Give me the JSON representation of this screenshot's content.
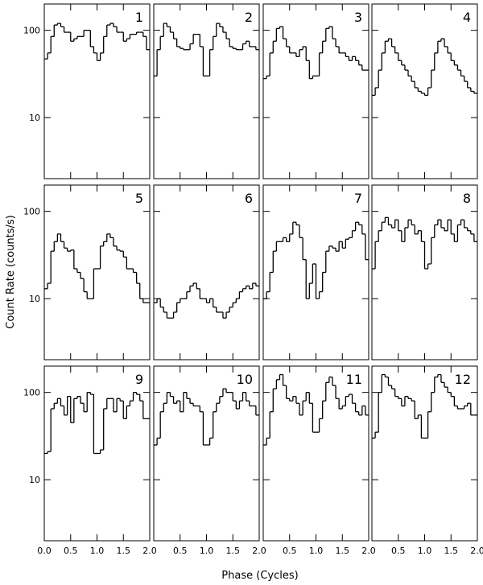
{
  "xlabel": "Phase (Cycles)",
  "ylabel": "Count Rate (counts/s)",
  "axes": {
    "xlim": [
      0,
      2
    ],
    "ylim": [
      2,
      200
    ],
    "log_y": true,
    "xticks": [
      {
        "value": 0,
        "label": "0.0"
      },
      0.5,
      {
        "value": 1,
        "label": "1.0"
      },
      1.5,
      {
        "value": 2,
        "label": "2.0"
      }
    ],
    "yticks": [
      10,
      100
    ],
    "bins": [
      0,
      0.0625,
      0.125,
      0.1875,
      0.25,
      0.3125,
      0.375,
      0.4375,
      0.5,
      0.5625,
      0.625,
      0.6875,
      0.75,
      0.8125,
      0.875,
      0.9375,
      1,
      1.0625,
      1.125,
      1.1875,
      1.25,
      1.3125,
      1.375,
      1.4375,
      1.5,
      1.5625,
      1.625,
      1.6875,
      1.75,
      1.8125,
      1.875,
      1.9375,
      2
    ],
    "color": "#000000"
  },
  "chart_data": [
    {
      "type": "step",
      "title": "1",
      "values": [
        47,
        55,
        85,
        115,
        120,
        110,
        95,
        95,
        75,
        80,
        85,
        85,
        100,
        100,
        65,
        55,
        45,
        55,
        85,
        115,
        120,
        110,
        95,
        95,
        75,
        80,
        90,
        90,
        95,
        95,
        85,
        60
      ]
    },
    {
      "type": "step",
      "title": "2",
      "values": [
        30,
        60,
        85,
        120,
        110,
        95,
        80,
        65,
        62,
        60,
        60,
        70,
        90,
        90,
        65,
        30,
        30,
        60,
        85,
        120,
        110,
        95,
        80,
        65,
        62,
        60,
        60,
        70,
        75,
        65,
        65,
        60
      ]
    },
    {
      "type": "step",
      "title": "3",
      "values": [
        28,
        30,
        55,
        75,
        105,
        110,
        80,
        65,
        55,
        55,
        50,
        60,
        65,
        45,
        28,
        30,
        30,
        55,
        75,
        105,
        110,
        80,
        65,
        55,
        55,
        50,
        45,
        50,
        45,
        40,
        35,
        35
      ]
    },
    {
      "type": "step",
      "title": "4",
      "values": [
        18,
        22,
        35,
        55,
        75,
        80,
        65,
        55,
        45,
        40,
        35,
        30,
        26,
        22,
        20,
        19,
        18,
        22,
        35,
        55,
        75,
        80,
        65,
        55,
        45,
        40,
        35,
        30,
        26,
        22,
        20,
        19
      ]
    },
    {
      "type": "step",
      "title": "5",
      "values": [
        13,
        15,
        35,
        45,
        55,
        45,
        38,
        35,
        36,
        22,
        20,
        17,
        12,
        10,
        10,
        22,
        22,
        40,
        45,
        55,
        50,
        40,
        36,
        35,
        30,
        22,
        22,
        20,
        15,
        10,
        9,
        9
      ]
    },
    {
      "type": "step",
      "title": "6",
      "values": [
        9,
        10,
        8,
        7,
        6,
        6,
        7,
        9,
        10,
        10,
        12,
        14,
        15,
        13,
        10,
        10,
        9,
        10,
        8,
        7,
        7,
        6,
        7,
        8,
        9,
        10,
        12,
        13,
        14,
        13,
        15,
        14
      ]
    },
    {
      "type": "step",
      "title": "7",
      "values": [
        10,
        12,
        20,
        35,
        45,
        45,
        50,
        45,
        55,
        75,
        70,
        50,
        28,
        10,
        15,
        25,
        10,
        12,
        20,
        35,
        40,
        38,
        35,
        45,
        38,
        48,
        50,
        60,
        75,
        70,
        55,
        28
      ]
    },
    {
      "type": "step",
      "title": "8",
      "values": [
        22,
        45,
        60,
        75,
        85,
        70,
        65,
        80,
        60,
        45,
        65,
        80,
        70,
        55,
        60,
        45,
        22,
        25,
        50,
        70,
        80,
        65,
        60,
        80,
        55,
        45,
        70,
        80,
        65,
        60,
        55,
        45
      ]
    },
    {
      "type": "step",
      "title": "9",
      "values": [
        20,
        21,
        65,
        75,
        85,
        70,
        55,
        90,
        45,
        85,
        90,
        75,
        60,
        100,
        95,
        20,
        20,
        22,
        65,
        85,
        85,
        60,
        85,
        80,
        50,
        70,
        80,
        100,
        95,
        80,
        50,
        50
      ]
    },
    {
      "type": "step",
      "title": "10",
      "values": [
        25,
        30,
        60,
        75,
        100,
        90,
        75,
        80,
        60,
        100,
        85,
        75,
        70,
        70,
        60,
        25,
        25,
        30,
        60,
        75,
        90,
        110,
        100,
        100,
        80,
        65,
        80,
        100,
        80,
        70,
        70,
        55
      ]
    },
    {
      "type": "step",
      "title": "11",
      "values": [
        25,
        30,
        60,
        110,
        140,
        160,
        120,
        85,
        80,
        90,
        75,
        55,
        80,
        100,
        75,
        35,
        35,
        50,
        80,
        130,
        150,
        120,
        85,
        65,
        70,
        90,
        95,
        75,
        60,
        55,
        70,
        55
      ]
    },
    {
      "type": "step",
      "title": "12",
      "values": [
        30,
        35,
        100,
        160,
        150,
        120,
        110,
        90,
        85,
        70,
        90,
        85,
        80,
        50,
        55,
        30,
        30,
        60,
        100,
        150,
        160,
        130,
        115,
        100,
        90,
        70,
        65,
        65,
        70,
        75,
        55,
        55
      ]
    }
  ]
}
